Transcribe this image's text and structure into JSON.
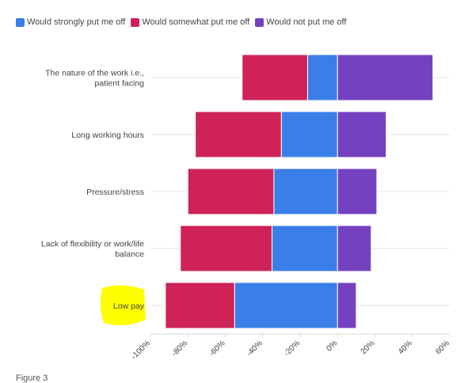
{
  "legend": [
    {
      "label": "Would strongly put me off",
      "color": "#3a7ee8"
    },
    {
      "label": "Would somewhat put me off",
      "color": "#cf2257"
    },
    {
      "label": "Would not put me off",
      "color": "#7442c0"
    }
  ],
  "caption": "Figure 3",
  "highlight_color": "#ffff00",
  "chart_data": {
    "type": "bar",
    "orientation": "horizontal",
    "stacked": "diverging",
    "categories": [
      "The nature of the work i.e., patient facing",
      "Long working hours",
      "Pressure/stress",
      "Lack of flexibility or work/life balance",
      "Low pay"
    ],
    "series": [
      {
        "name": "Would strongly put me off",
        "color": "#3a7ee8",
        "values": [
          -16,
          -30,
          -34,
          -35,
          -55
        ]
      },
      {
        "name": "Would somewhat put me off",
        "color": "#cf2257",
        "values": [
          -35,
          -46,
          -46,
          -49,
          -37
        ]
      },
      {
        "name": "Would not put me off",
        "color": "#7442c0",
        "values": [
          51,
          26,
          21,
          18,
          10
        ]
      }
    ],
    "xlim": [
      -100,
      60
    ],
    "xticks": [
      "-100%",
      "-80%",
      "-60%",
      "-40%",
      "-20%",
      "0%",
      "20%",
      "40%",
      "60%"
    ],
    "highlighted_category": "Low pay",
    "legend_position": "top-left",
    "grid": true
  }
}
